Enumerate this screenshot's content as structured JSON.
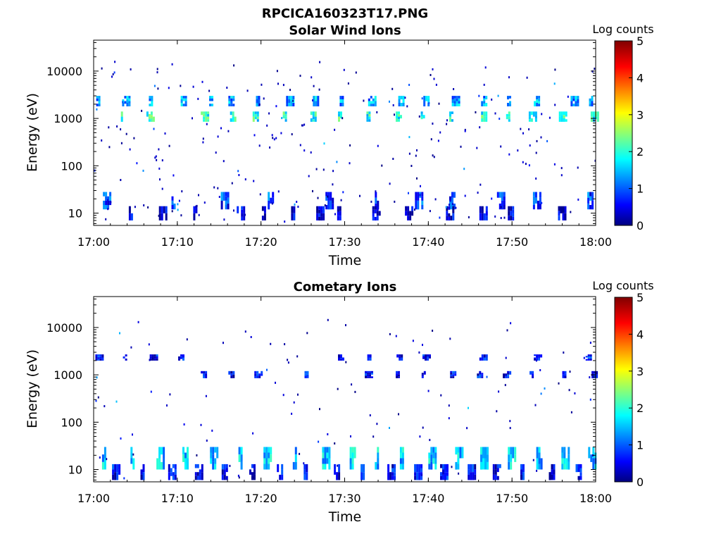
{
  "figure_title": "RPCICA160323T17.PNG",
  "chart_data": [
    {
      "type": "heatmap",
      "title": "Solar Wind Ions",
      "xlabel": "Time",
      "ylabel": "Energy (eV)",
      "x_range": [
        "17:00",
        "18:00"
      ],
      "x_ticks": [
        "17:00",
        "17:10",
        "17:20",
        "17:30",
        "17:40",
        "17:50",
        "18:00"
      ],
      "y_scale": "log",
      "y_range": [
        5.5,
        45000
      ],
      "y_ticks": [
        10,
        100,
        1000,
        10000
      ],
      "y_tick_labels": [
        "10",
        "100",
        "1000",
        "10000"
      ],
      "colorbar": {
        "label": "Log counts",
        "range": [
          0,
          5
        ],
        "ticks": [
          "0",
          "1",
          "2",
          "3",
          "4",
          "5"
        ],
        "colormap": "jet"
      },
      "grid": false,
      "bands": [
        {
          "energy_lo": 1800,
          "energy_hi": 3000,
          "level": 1.4,
          "times": [
            0.3,
            3.4,
            6.6,
            10.4,
            13.8,
            16.1,
            19.4,
            23.0,
            26.2,
            29.4,
            32.8,
            36.4,
            39.4,
            42.8,
            46.3,
            49.4,
            52.6,
            57.0,
            59.2
          ]
        },
        {
          "energy_lo": 850,
          "energy_hi": 1400,
          "level": 2.0,
          "times": [
            3.0,
            6.3,
            12.8,
            16.3,
            19.0,
            22.6,
            25.9,
            29.2,
            32.6,
            36.1,
            39.1,
            42.5,
            46.3,
            49.3,
            52.0,
            55.6,
            59.4
          ]
        },
        {
          "energy_lo": 12,
          "energy_hi": 28,
          "level": 0.9,
          "times": [
            1.1,
            9.3,
            15.2,
            20.8,
            27.7,
            33.6,
            38.4,
            42.5,
            48.2,
            52.5,
            59.0
          ]
        },
        {
          "energy_lo": 7,
          "energy_hi": 14,
          "level": 0.4,
          "times": [
            4.2,
            7.8,
            11.9,
            17.1,
            20.1,
            23.6,
            26.6,
            29.1,
            33.3,
            37.2,
            42.1,
            46.1,
            49.5,
            55.5
          ]
        }
      ],
      "speckle_density": 260,
      "speckle_seed": 7
    },
    {
      "type": "heatmap",
      "title": "Cometary Ions",
      "xlabel": "Time",
      "ylabel": "Energy (eV)",
      "x_range": [
        "17:00",
        "18:00"
      ],
      "x_ticks": [
        "17:00",
        "17:10",
        "17:20",
        "17:30",
        "17:40",
        "17:50",
        "18:00"
      ],
      "y_scale": "log",
      "y_range": [
        5.5,
        45000
      ],
      "y_ticks": [
        10,
        100,
        1000,
        10000
      ],
      "y_tick_labels": [
        "10",
        "100",
        "1000",
        "10000"
      ],
      "colorbar": {
        "label": "Log counts",
        "range": [
          0,
          5
        ],
        "ticks": [
          "0",
          "1",
          "2",
          "3",
          "4",
          "5"
        ],
        "colormap": "jet"
      },
      "grid": false,
      "bands": [
        {
          "energy_lo": 10,
          "energy_hi": 30,
          "level": 1.6,
          "times": [
            1.0,
            4.4,
            7.5,
            10.6,
            13.9,
            17.3,
            20.3,
            23.8,
            27.3,
            30.6,
            33.6,
            36.6,
            40.0,
            43.2,
            46.2,
            49.5,
            52.9,
            55.9,
            59.1
          ]
        },
        {
          "energy_lo": 6,
          "energy_hi": 13,
          "level": 0.6,
          "times": [
            2.2,
            5.6,
            8.9,
            12.1,
            15.3,
            18.6,
            21.9,
            25.1,
            28.7,
            31.9,
            35.1,
            38.3,
            41.4,
            44.7,
            47.7,
            51.0,
            54.4,
            57.6
          ]
        },
        {
          "energy_lo": 850,
          "energy_hi": 1200,
          "level": 0.6,
          "times": [
            12.8,
            16.1,
            19.2,
            25.2,
            32.4,
            36.1,
            39.2,
            42.6,
            45.8,
            48.9,
            52.1,
            56.0,
            59.5
          ]
        },
        {
          "energy_lo": 2000,
          "energy_hi": 2700,
          "level": 0.7,
          "times": [
            0.2,
            3.5,
            6.7,
            10.1,
            29.2,
            32.7,
            36.2,
            39.3,
            46.1,
            52.6,
            58.8
          ]
        }
      ],
      "speckle_density": 110,
      "speckle_seed": 13
    }
  ]
}
